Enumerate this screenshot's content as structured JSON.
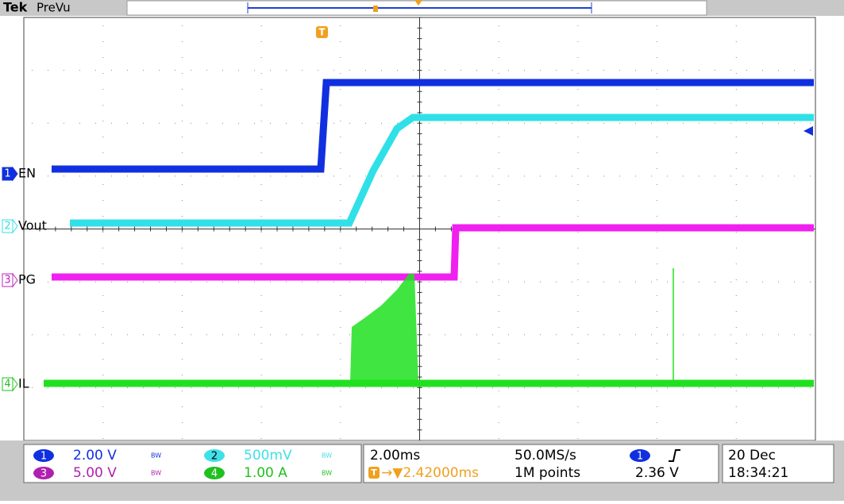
{
  "header": {
    "brand": "Tek",
    "mode": "PreVu",
    "trigger_marker": "T"
  },
  "channels": [
    {
      "number": "1",
      "label": "EN"
    },
    {
      "number": "2",
      "label": "Vout"
    },
    {
      "number": "3",
      "label": "PG"
    },
    {
      "number": "4",
      "label": "IL"
    }
  ],
  "settings": [
    {
      "number": "1",
      "scale": "2.00 V",
      "bw": "BW"
    },
    {
      "number": "2",
      "scale": "500mV",
      "bw": "BW"
    },
    {
      "number": "3",
      "scale": "5.00 V",
      "bw": "BW"
    },
    {
      "number": "4",
      "scale": "1.00 A",
      "bw": "BW"
    }
  ],
  "timebase": {
    "scale": "2.00ms",
    "sample_rate": "50.0MS/s",
    "trigger_marker": "T",
    "trigger_position": "→▼2.42000ms",
    "record_length": "1M points"
  },
  "trigger": {
    "source": "1",
    "level": "2.36 V"
  },
  "datetime": {
    "date": "20 Dec",
    "time": "18:34:21"
  }
}
